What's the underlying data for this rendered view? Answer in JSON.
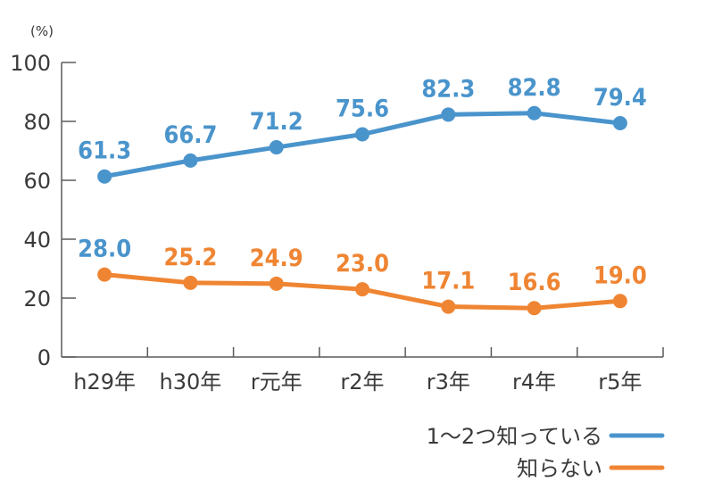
{
  "chart_data": {
    "type": "line",
    "title": "",
    "unit_label": "(%)",
    "xlabel": "",
    "ylabel": "",
    "categories": [
      "h29年",
      "h30年",
      "r元年",
      "r2年",
      "r3年",
      "r4年",
      "r5年"
    ],
    "ylim": [
      0,
      100
    ],
    "yticks": [
      0,
      20,
      40,
      60,
      80,
      100
    ],
    "grid": false,
    "legend_position": "bottom-right",
    "series": [
      {
        "name": "1〜2つ知っている",
        "color": "#4a94cc",
        "values": [
          61.3,
          66.7,
          71.2,
          75.6,
          82.3,
          82.8,
          79.4
        ],
        "labels": [
          "61.3",
          "66.7",
          "71.2",
          "75.6",
          "82.3",
          "82.8",
          "79.4"
        ],
        "label_colors": [
          "#4a94cc",
          "#4a94cc",
          "#4a94cc",
          "#4a94cc",
          "#4a94cc",
          "#4a94cc",
          "#4a94cc"
        ]
      },
      {
        "name": "知らない",
        "color": "#ef8533",
        "values": [
          28.0,
          25.2,
          24.9,
          23.0,
          17.1,
          16.6,
          19.0
        ],
        "labels": [
          "28.0",
          "25.2",
          "24.9",
          "23.0",
          "17.1",
          "16.6",
          "19.0"
        ],
        "label_colors": [
          "#4a94cc",
          "#ef8533",
          "#ef8533",
          "#ef8533",
          "#ef8533",
          "#ef8533",
          "#ef8533"
        ]
      }
    ]
  }
}
